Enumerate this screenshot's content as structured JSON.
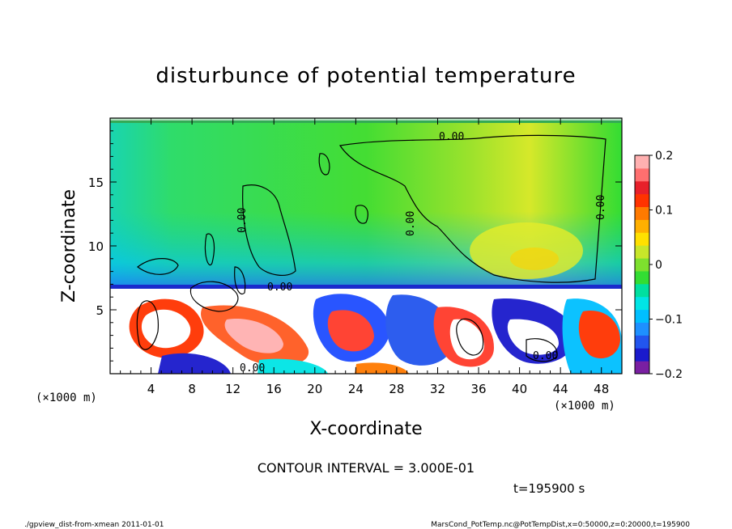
{
  "chart_data": {
    "type": "heatmap",
    "title": "disturbunce of potential temperature",
    "xlabel": "X-coordinate",
    "ylabel": "Z-coordinate",
    "x_unit_left": "(×1000 m)",
    "x_unit_right": "(×1000 m)",
    "xlim": [
      0,
      50
    ],
    "ylim": [
      0,
      20
    ],
    "x_ticks": [
      4,
      8,
      12,
      16,
      20,
      24,
      28,
      32,
      36,
      40,
      44,
      48
    ],
    "y_ticks": [
      5,
      10,
      15
    ],
    "colorbar": {
      "range": [
        -0.2,
        0.2
      ],
      "tick_values": [
        0.2,
        0.1,
        0,
        -0.1,
        -0.2
      ],
      "tick_labels": [
        "0.2",
        "0.1",
        "0",
        "−0.1",
        "−0.2"
      ],
      "colors": [
        "#7a1fa2",
        "#1a1acc",
        "#2255ee",
        "#1e90ff",
        "#00bfff",
        "#00e5e5",
        "#00e0a0",
        "#33dd33",
        "#7ee02e",
        "#c8e62a",
        "#ffe000",
        "#ffb000",
        "#ff7a00",
        "#ff3300",
        "#e8202a",
        "#ff6f6f",
        "#ffb0b0"
      ]
    },
    "contour_interval_text": "CONTOUR INTERVAL = 3.000E-01",
    "contour_labels": [
      "0.00",
      "0.00",
      "0.00",
      "0.00",
      "0.00",
      "0.00",
      "0.00"
    ]
  },
  "annotations": {
    "time": "t=195900 s",
    "footer_left": "./gpview_dist-from-xmean  2011-01-01",
    "footer_right": "MarsCond_PotTemp.nc@PotTempDist,x=0:50000,z=0:20000,t=195900"
  }
}
